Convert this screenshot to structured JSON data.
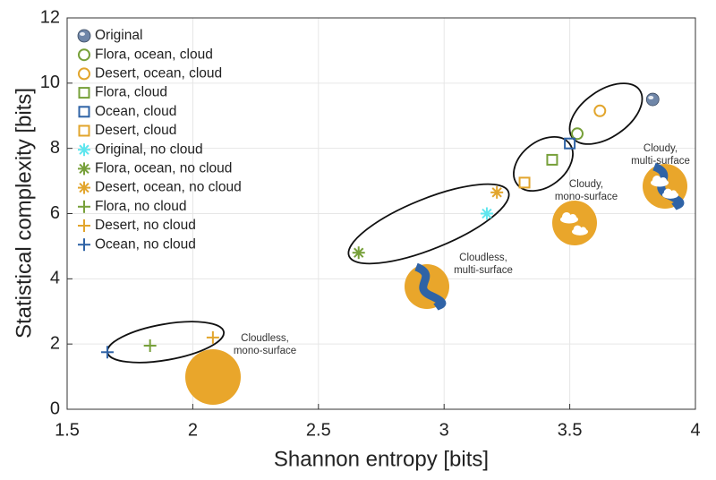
{
  "chart_data": {
    "type": "scatter",
    "xlabel": "Shannon entropy [bits]",
    "ylabel": "Statistical complexity [bits]",
    "xlim": [
      1.5,
      4
    ],
    "xticks": [
      1.5,
      2,
      2.5,
      3,
      3.5,
      4
    ],
    "ylim": [
      0,
      12
    ],
    "yticks": [
      0,
      2,
      4,
      6,
      8,
      10,
      12
    ],
    "grid": true,
    "legend": "upper left",
    "series": [
      {
        "name": "Original",
        "color": "#6f86a8",
        "marker": "globe",
        "x": [
          3.83
        ],
        "values": [
          9.5
        ]
      },
      {
        "name": "Flora, ocean, cloud",
        "color": "#77a03a",
        "marker": "circle",
        "x": [
          3.53
        ],
        "values": [
          8.45
        ]
      },
      {
        "name": "Desert, ocean, cloud",
        "color": "#e2a52c",
        "marker": "circle",
        "x": [
          3.62
        ],
        "values": [
          9.15
        ]
      },
      {
        "name": "Flora, cloud",
        "color": "#77a03a",
        "marker": "square",
        "x": [
          3.43
        ],
        "values": [
          7.65
        ]
      },
      {
        "name": "Ocean, cloud",
        "color": "#2f63a6",
        "marker": "square",
        "x": [
          3.5
        ],
        "values": [
          8.15
        ]
      },
      {
        "name": "Desert, cloud",
        "color": "#e2a52c",
        "marker": "square",
        "x": [
          3.32
        ],
        "values": [
          6.95
        ]
      },
      {
        "name": "Original, no cloud",
        "color": "#5fe6ee",
        "marker": "asterisk",
        "x": [
          3.17
        ],
        "values": [
          6.0
        ]
      },
      {
        "name": "Flora, ocean, no cloud",
        "color": "#77a03a",
        "marker": "asterisk",
        "x": [
          2.66
        ],
        "values": [
          4.8
        ]
      },
      {
        "name": "Desert, ocean, no cloud",
        "color": "#e2a52c",
        "marker": "asterisk",
        "x": [
          3.21
        ],
        "values": [
          6.65
        ]
      },
      {
        "name": "Flora, no cloud",
        "color": "#77a03a",
        "marker": "plus",
        "x": [
          1.83
        ],
        "values": [
          1.95
        ]
      },
      {
        "name": "Desert, no cloud",
        "color": "#e2a52c",
        "marker": "plus",
        "x": [
          2.08
        ],
        "values": [
          2.2
        ]
      },
      {
        "name": "Ocean, no cloud",
        "color": "#2f63a6",
        "marker": "plus",
        "x": [
          1.66
        ],
        "values": [
          1.75
        ]
      }
    ],
    "annotations": [
      [
        "Cloudless,",
        "mono-surface"
      ],
      [
        "Cloudless,",
        "multi-surface"
      ],
      [
        "Cloudy,",
        "mono-surface"
      ],
      [
        "Cloudy,",
        "multi-surface"
      ]
    ]
  }
}
